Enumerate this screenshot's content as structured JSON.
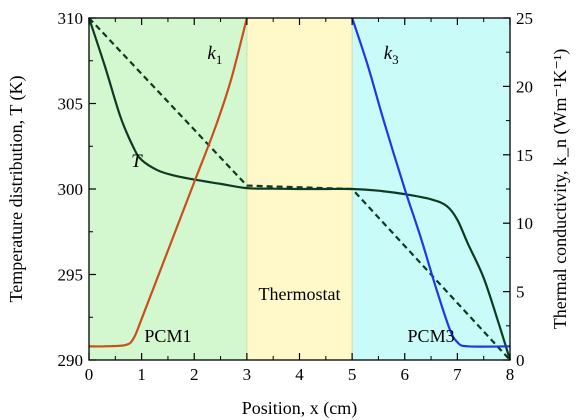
{
  "chart_data": {
    "type": "line",
    "xlabel": "Position, x (cm)",
    "ylabel_left": "Temperature distribution, T (K)",
    "ylabel_right": "Thermal conductivity, k_n (Wm⁻¹K⁻¹)",
    "xlim": [
      0,
      8
    ],
    "ylim_left": [
      290,
      310
    ],
    "ylim_right": [
      0,
      25
    ],
    "x_ticks": [
      0,
      1,
      2,
      3,
      4,
      5,
      6,
      7,
      8
    ],
    "y_ticks_left": [
      290,
      295,
      300,
      305,
      310
    ],
    "y_ticks_right": [
      0,
      5,
      10,
      15,
      20,
      25
    ],
    "regions": [
      {
        "label": "PCM1",
        "x": [
          0,
          3
        ],
        "color": "#d3f7cf"
      },
      {
        "label": "Thermostat",
        "x": [
          3,
          5
        ],
        "color": "#fff9c9"
      },
      {
        "label": "PCM3",
        "x": [
          5,
          8
        ],
        "color": "#c9fbf9"
      }
    ],
    "series": [
      {
        "name": "T",
        "axis": "left",
        "color": "#0e3a22",
        "style": "solid",
        "points": [
          [
            0,
            310
          ],
          [
            0.3,
            307.2
          ],
          [
            0.6,
            304.2
          ],
          [
            0.85,
            302.4
          ],
          [
            1.0,
            301.7
          ],
          [
            1.3,
            301.1
          ],
          [
            1.6,
            300.8
          ],
          [
            2.0,
            300.55
          ],
          [
            2.5,
            300.3
          ],
          [
            3.0,
            300.05
          ],
          [
            3.5,
            300.02
          ],
          [
            4.0,
            300.0
          ],
          [
            4.5,
            300.0
          ],
          [
            5.0,
            300.0
          ],
          [
            5.5,
            299.9
          ],
          [
            6.0,
            299.7
          ],
          [
            6.5,
            299.4
          ],
          [
            6.8,
            299.0
          ],
          [
            7.0,
            298.2
          ],
          [
            7.2,
            296.8
          ],
          [
            7.5,
            294.8
          ],
          [
            7.8,
            292.0
          ],
          [
            8.0,
            290
          ]
        ]
      },
      {
        "name": "T_linear",
        "axis": "left",
        "color": "#0e3a22",
        "style": "dashed",
        "points": [
          [
            0,
            310
          ],
          [
            3,
            300.2
          ],
          [
            5,
            300.0
          ],
          [
            8,
            290
          ]
        ]
      },
      {
        "name": "k1",
        "axis": "right",
        "color": "#c8501c",
        "style": "solid",
        "points": [
          [
            0,
            1.0
          ],
          [
            0.3,
            1.0
          ],
          [
            0.7,
            1.1
          ],
          [
            0.85,
            1.6
          ],
          [
            1.0,
            3.0
          ],
          [
            1.3,
            6.0
          ],
          [
            1.6,
            9.0
          ],
          [
            2.0,
            13.0
          ],
          [
            2.4,
            17.0
          ],
          [
            2.7,
            20.5
          ],
          [
            3.0,
            25.0
          ]
        ]
      },
      {
        "name": "k3",
        "axis": "right",
        "color": "#1f38e8",
        "style": "solid",
        "points": [
          [
            5.0,
            25.0
          ],
          [
            5.3,
            21.5
          ],
          [
            5.6,
            17.5
          ],
          [
            6.0,
            12.5
          ],
          [
            6.3,
            9.0
          ],
          [
            6.6,
            5.2
          ],
          [
            6.85,
            2.3
          ],
          [
            7.0,
            1.3
          ],
          [
            7.2,
            1.0
          ],
          [
            8.0,
            1.0
          ]
        ]
      }
    ],
    "annotations": [
      {
        "text": "T",
        "series": "T"
      },
      {
        "text": "k",
        "sub": "1",
        "series": "k1"
      },
      {
        "text": "k",
        "sub": "3",
        "series": "k3"
      }
    ]
  }
}
